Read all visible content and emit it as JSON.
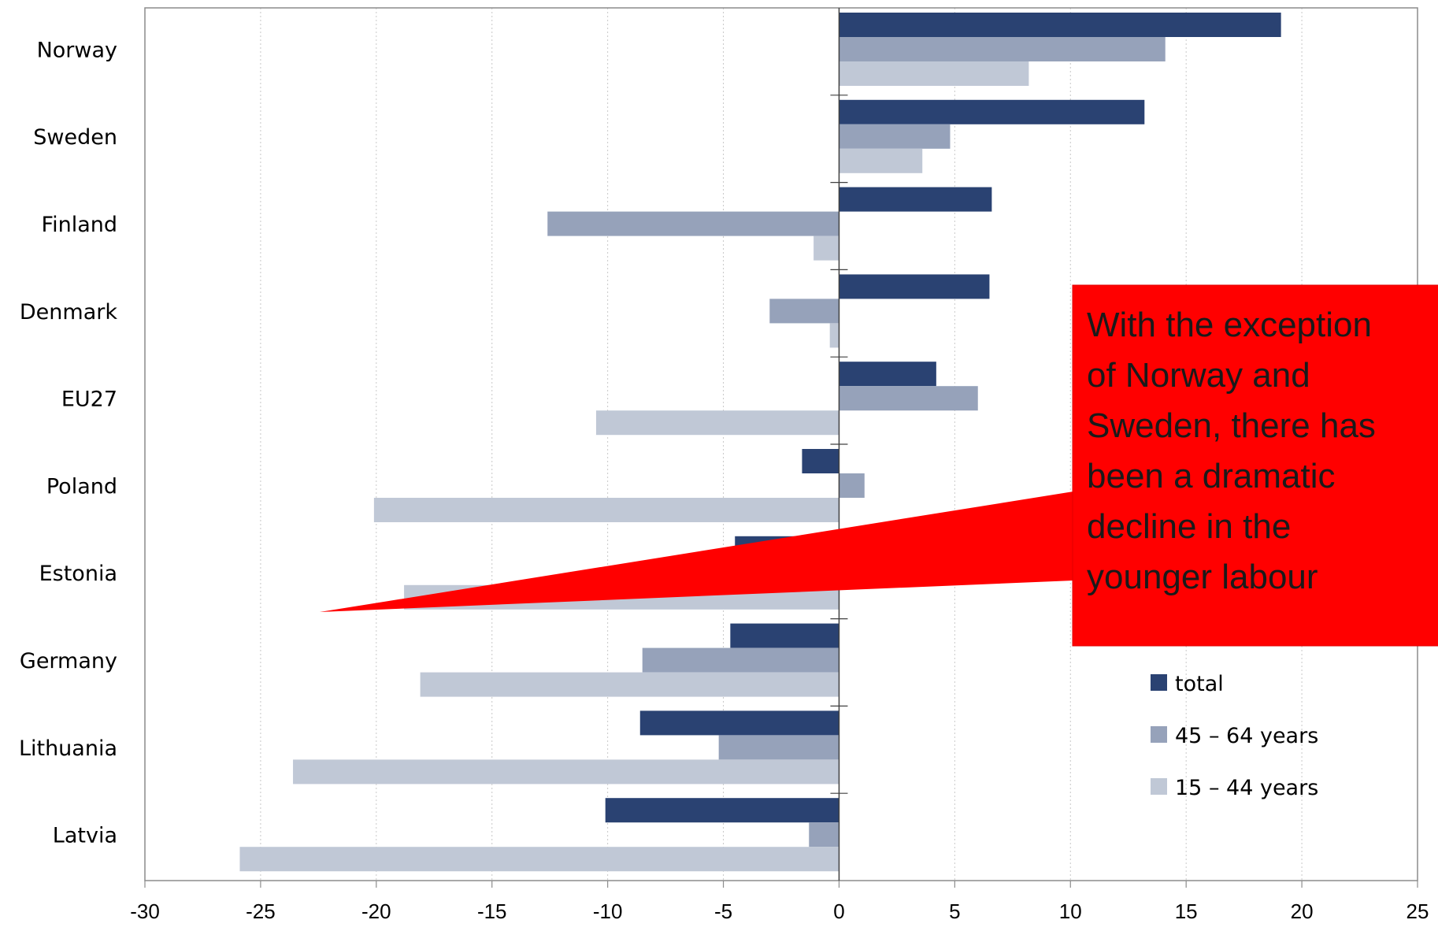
{
  "chart_data": {
    "type": "bar",
    "orientation": "horizontal",
    "categories": [
      "Norway",
      "Sweden",
      "Finland",
      "Denmark",
      "EU27",
      "Poland",
      "Estonia",
      "Germany",
      "Lithuania",
      "Latvia"
    ],
    "series": [
      {
        "name": "total",
        "color": "#2a4272",
        "values": [
          19.1,
          13.2,
          6.6,
          6.5,
          4.2,
          -1.6,
          -4.5,
          -4.7,
          -8.6,
          -10.1
        ]
      },
      {
        "name": "45 – 64 years",
        "color": "#96a2ba",
        "values": [
          14.1,
          4.8,
          -12.6,
          -3.0,
          6.0,
          1.1,
          -2.0,
          -8.5,
          -5.2,
          -1.3
        ]
      },
      {
        "name": "15 – 44 years",
        "color": "#c0c8d6",
        "values": [
          8.2,
          3.6,
          -1.1,
          -0.4,
          -10.5,
          -20.1,
          -18.8,
          -18.1,
          -23.6,
          -25.9
        ]
      }
    ],
    "xlim": [
      -30,
      25
    ],
    "xticks": [
      "-30",
      "-25",
      "-20",
      "-15",
      "-10",
      "-5",
      "0",
      "5",
      "10",
      "15",
      "20",
      "25"
    ],
    "grid": "vertical dotted",
    "legend_position": "bottom-right",
    "annotation": {
      "text_lines": [
        "With the exception",
        "of Norway and",
        "Sweden, there has",
        "been a dramatic",
        "decline in the",
        "younger labour"
      ],
      "fill": "#ff0000"
    }
  }
}
